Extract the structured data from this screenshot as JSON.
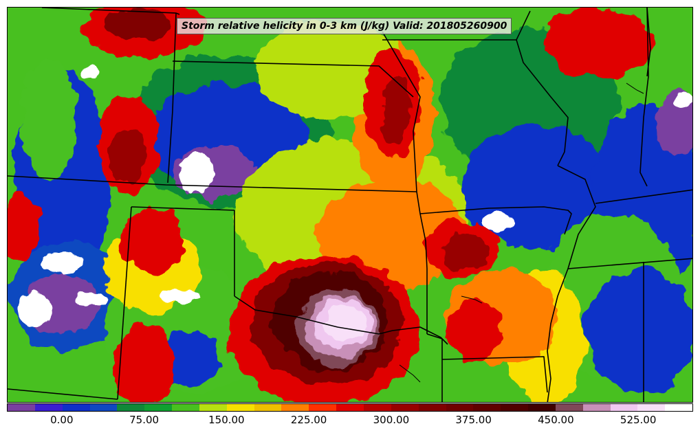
{
  "title": "Storm relative helicity in 0-3 km (J/kg) Valid: 201805260900",
  "colorbar": {
    "tick_labels": [
      "0.00",
      "75.00",
      "150.00",
      "225.00",
      "300.00",
      "375.00",
      "450.00",
      "525.00"
    ],
    "tick_values": [
      0,
      75,
      150,
      225,
      300,
      375,
      450,
      525
    ],
    "min": -50,
    "max": 575,
    "interval": 25,
    "colors": [
      "#7a3fa0",
      "#3b1fd0",
      "#1030c8",
      "#1048c0",
      "#108838",
      "#10a030",
      "#48c020",
      "#b8e010",
      "#f8e000",
      "#f0c000",
      "#ff8000",
      "#ff3000",
      "#e00000",
      "#b80000",
      "#980000",
      "#800000",
      "#700000",
      "#600000",
      "#500000",
      "#400000",
      "#804858",
      "#c890b8",
      "#f0c8f0",
      "#f8e0f8",
      "#ffffff"
    ]
  }
}
